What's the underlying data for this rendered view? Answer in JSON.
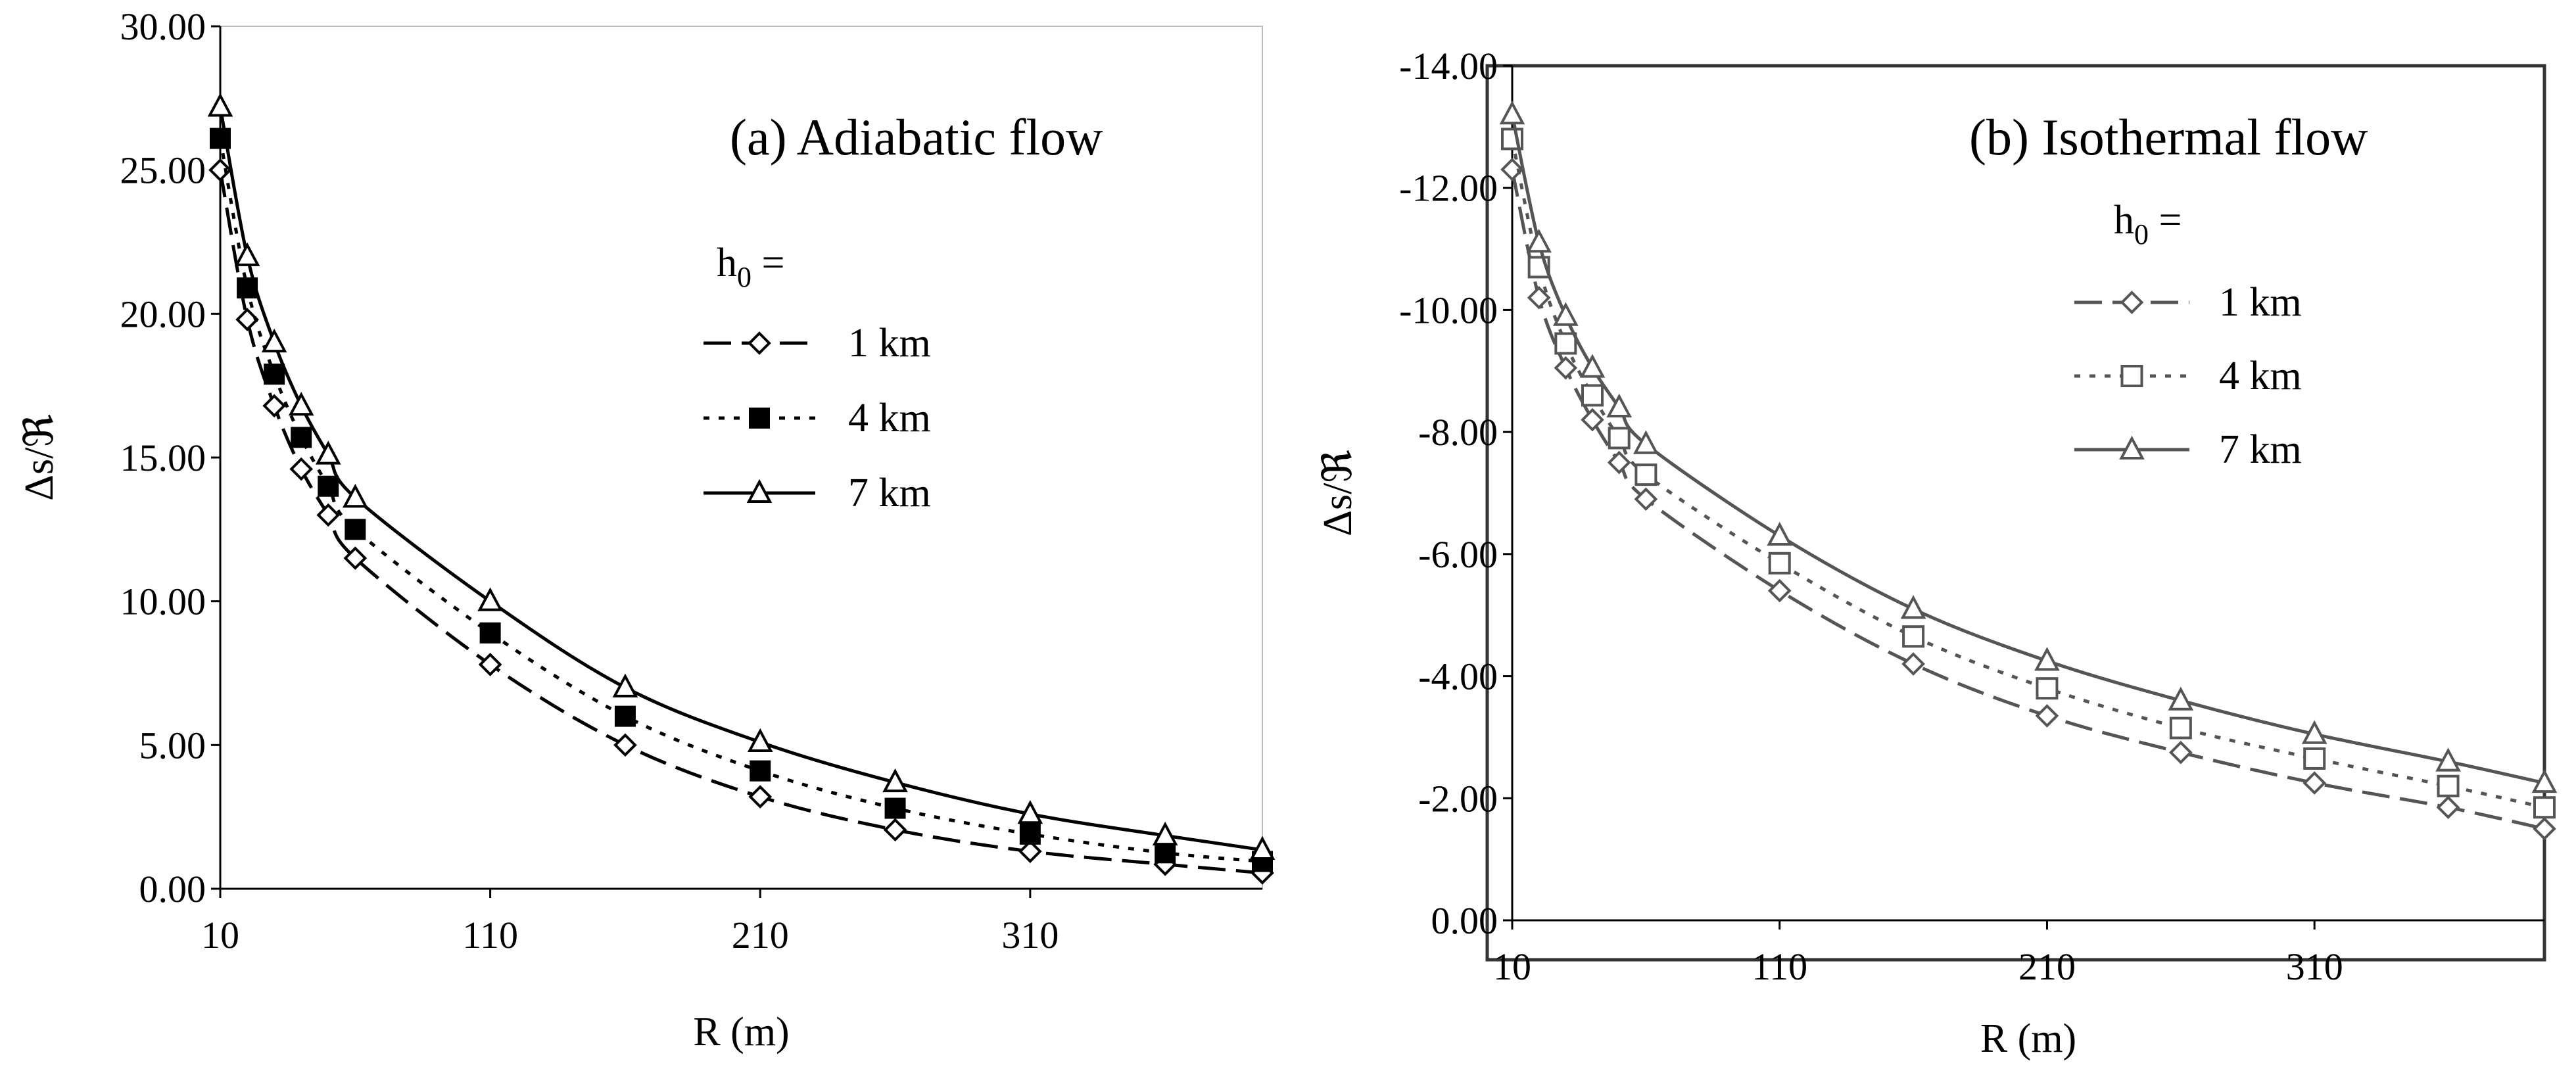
{
  "chart_data": [
    {
      "type": "line",
      "title": "(a) Adiabatic flow",
      "xlabel": "R  (m)",
      "ylabel": "Δs/ℜ",
      "xlim": [
        10,
        396
      ],
      "ylim": [
        0,
        30
      ],
      "x_ticks": [
        "10",
        "110",
        "210",
        "310"
      ],
      "y_ticks": [
        "0.00",
        "5.00",
        "10.00",
        "15.00",
        "20.00",
        "25.00",
        "30.00"
      ],
      "legend_title": "h",
      "legend_title_sub": "0",
      "legend_title_suffix": " =",
      "legend_position": "right",
      "grid": false,
      "x": [
        10,
        20,
        30,
        40,
        50,
        60,
        110,
        160,
        210,
        260,
        310,
        360,
        396
      ],
      "series": [
        {
          "name": "1 km",
          "marker": "diamond-open",
          "dash": "dash",
          "color": "#000000",
          "values": [
            25.0,
            19.8,
            16.8,
            14.6,
            13.0,
            11.5,
            7.8,
            5.0,
            3.2,
            2.05,
            1.3,
            0.85,
            0.55
          ]
        },
        {
          "name": "4 km",
          "marker": "square-filled",
          "dash": "dot",
          "color": "#000000",
          "values": [
            26.1,
            20.9,
            17.9,
            15.7,
            14.0,
            12.5,
            8.9,
            6.0,
            4.1,
            2.8,
            1.9,
            1.25,
            0.95
          ]
        },
        {
          "name": "7 km",
          "marker": "triangle-open",
          "dash": "solid",
          "color": "#000000",
          "values": [
            27.2,
            22.0,
            19.0,
            16.8,
            15.1,
            13.6,
            10.0,
            7.0,
            5.1,
            3.7,
            2.6,
            1.85,
            1.35
          ]
        }
      ]
    },
    {
      "type": "line",
      "title": "(b) Isothermal flow",
      "xlabel": "R (m)",
      "ylabel": "Δs/ℜ",
      "xlim": [
        10,
        396
      ],
      "ylim": [
        0,
        -14
      ],
      "x_ticks": [
        "10",
        "110",
        "210",
        "310"
      ],
      "y_ticks": [
        "0.00",
        "-2.00",
        "-4.00",
        "-6.00",
        "-8.00",
        "-10.00",
        "-12.00",
        "-14.00"
      ],
      "legend_title": "h",
      "legend_title_sub": "0",
      "legend_title_suffix": " =",
      "legend_position": "right",
      "grid": false,
      "x": [
        10,
        20,
        30,
        40,
        50,
        60,
        110,
        160,
        210,
        260,
        310,
        360,
        396
      ],
      "series": [
        {
          "name": "1 km",
          "marker": "diamond-open",
          "dash": "dash",
          "color": "#555555",
          "values": [
            -12.3,
            -10.2,
            -9.05,
            -8.2,
            -7.5,
            -6.9,
            -5.4,
            -4.2,
            -3.35,
            -2.75,
            -2.25,
            -1.85,
            -1.5
          ]
        },
        {
          "name": "4 km",
          "marker": "square-open",
          "dash": "dot",
          "color": "#555555",
          "values": [
            -12.8,
            -10.7,
            -9.45,
            -8.6,
            -7.9,
            -7.3,
            -5.85,
            -4.65,
            -3.8,
            -3.15,
            -2.65,
            -2.2,
            -1.85
          ]
        },
        {
          "name": "7 km",
          "marker": "triangle-open",
          "dash": "solid",
          "color": "#555555",
          "values": [
            -13.2,
            -11.1,
            -9.9,
            -9.05,
            -8.4,
            -7.8,
            -6.3,
            -5.1,
            -4.25,
            -3.6,
            -3.05,
            -2.6,
            -2.25
          ]
        }
      ]
    }
  ]
}
